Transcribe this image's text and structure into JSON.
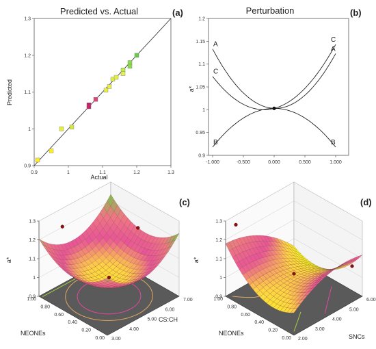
{
  "chart_data": [
    {
      "panel": "(a)",
      "type": "scatter",
      "title": "Predicted vs. Actual",
      "xlabel": "Actual",
      "ylabel": "Predicted",
      "xlim": [
        0.9,
        1.3
      ],
      "ylim": [
        0.9,
        1.3
      ],
      "xticks": [
        "0.9",
        "1",
        "1.1",
        "1.2",
        "1.3"
      ],
      "yticks": [
        "0.9",
        "1",
        "1.1",
        "1.2",
        "1.3"
      ],
      "diagonal": [
        [
          0.9,
          0.9
        ],
        [
          1.3,
          1.3
        ]
      ],
      "points": [
        {
          "x": 0.91,
          "y": 0.915,
          "color": "#ffee22"
        },
        {
          "x": 0.95,
          "y": 0.94,
          "color": "#ffee22"
        },
        {
          "x": 0.98,
          "y": 1.0,
          "color": "#e8ee33"
        },
        {
          "x": 1.01,
          "y": 1.005,
          "color": "#d6e840"
        },
        {
          "x": 1.06,
          "y": 1.065,
          "color": "#cc1166"
        },
        {
          "x": 1.06,
          "y": 1.06,
          "color": "#cc2266"
        },
        {
          "x": 1.08,
          "y": 1.08,
          "color": "#dd4477"
        },
        {
          "x": 1.11,
          "y": 1.105,
          "color": "#e8ee44"
        },
        {
          "x": 1.12,
          "y": 1.115,
          "color": "#eeee44"
        },
        {
          "x": 1.13,
          "y": 1.135,
          "color": "#ddee44"
        },
        {
          "x": 1.14,
          "y": 1.14,
          "color": "#e8ee44"
        },
        {
          "x": 1.16,
          "y": 1.16,
          "color": "#bbee44"
        },
        {
          "x": 1.16,
          "y": 1.15,
          "color": "#e8ee55"
        },
        {
          "x": 1.18,
          "y": 1.18,
          "color": "#88dd44"
        },
        {
          "x": 1.18,
          "y": 1.17,
          "color": "#88dd44"
        },
        {
          "x": 1.2,
          "y": 1.2,
          "color": "#66cc44"
        }
      ]
    },
    {
      "panel": "(b)",
      "type": "line",
      "title": "Perturbation",
      "ylabel": "a*",
      "xlim": [
        -1,
        1
      ],
      "ylim": [
        0.9,
        1.2
      ],
      "xticks": [
        "-1.000",
        "-0.500",
        "0.000",
        "0.500",
        "1.000"
      ],
      "yticks": [
        "0.9",
        "0.95",
        "1",
        "1.05",
        "1.1",
        "1.15",
        "1.2"
      ],
      "center_point": {
        "x": 0,
        "y": 1.003
      },
      "series": [
        {
          "name": "A",
          "quad": [
            1.003,
            -0.005,
            0.125
          ]
        },
        {
          "name": "B",
          "quad": [
            1.003,
            0.0,
            -0.085
          ]
        },
        {
          "name": "C",
          "quad": [
            1.003,
            0.035,
            0.105
          ]
        }
      ]
    },
    {
      "panel": "(c)",
      "type": "surface",
      "zlabel": "a*",
      "xlabel": "CS:CH",
      "ylabel": "NEONEs",
      "zlim": [
        0.9,
        1.3
      ],
      "xticks": [
        "3.00",
        "4.00",
        "5.00",
        "6.00",
        "7.00"
      ],
      "yticks": [
        "0.00",
        "0.20",
        "0.40",
        "0.60",
        "0.80",
        "1.00"
      ],
      "zticks": [
        "0.9",
        "1",
        "1.1",
        "1.2",
        "1.3"
      ]
    },
    {
      "panel": "(d)",
      "type": "surface",
      "zlabel": "a*",
      "xlabel": "SNCs",
      "ylabel": "NEONEs",
      "zlim": [
        0.9,
        1.3
      ],
      "xticks": [
        "2.00",
        "3.00",
        "4.00",
        "5.00",
        "6.00"
      ],
      "yticks": [
        "0.00",
        "0.20",
        "0.40",
        "0.60",
        "0.80",
        "1.00"
      ],
      "zticks": [
        "0.9",
        "1",
        "1.1",
        "1.2",
        "1.3"
      ]
    }
  ]
}
